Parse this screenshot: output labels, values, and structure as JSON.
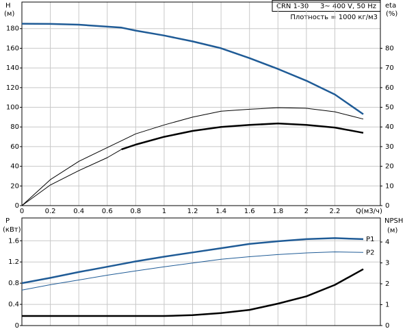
{
  "chart_data": [
    {
      "type": "line",
      "title": "CRN 1-30",
      "subtitle": "3~ 400 V, 50 Hz",
      "annotation": "Плотность = 1000 кг/м3",
      "xlabel": "Q(м3/ч)",
      "ylabel": "H",
      "yunit": "(м)",
      "y2label": "eta",
      "y2unit": "(%)",
      "x": [
        0,
        0.2,
        0.4,
        0.6,
        0.7,
        0.8,
        1.0,
        1.2,
        1.4,
        1.6,
        1.8,
        2.0,
        2.2,
        2.4
      ],
      "xlim": [
        0,
        2.52
      ],
      "xticks": [
        0,
        0.2,
        0.4,
        0.6,
        0.8,
        1,
        1.2,
        1.4,
        1.6,
        1.8,
        2,
        2.2
      ],
      "ylim": [
        0,
        207
      ],
      "yticks": [
        0,
        20,
        40,
        60,
        80,
        100,
        120,
        140,
        160,
        180
      ],
      "y2lim": [
        0,
        103.5
      ],
      "y2ticks": [
        0,
        10,
        20,
        30,
        40,
        50,
        60,
        70,
        80
      ],
      "grid": true,
      "series": [
        {
          "color": "#1f5b96",
          "line_width": 2.5,
          "values": [
            185,
            184.8,
            184,
            182,
            181,
            178,
            173,
            167,
            160,
            150,
            139,
            127,
            113,
            93
          ]
        },
        {
          "color": "#000000",
          "line_width": 1,
          "axis": "y2",
          "values": [
            0,
            13.2,
            22.5,
            29.5,
            33,
            36.5,
            41,
            45,
            48,
            49,
            49.8,
            49.5,
            47.7,
            44
          ]
        },
        {
          "color": "#000000",
          "line_width": 1,
          "axis": "y2",
          "values": [
            0,
            10.5,
            17.8,
            24.4,
            28.6,
            null,
            null,
            null,
            null,
            null,
            null,
            null,
            null,
            null
          ]
        },
        {
          "color": "#000000",
          "line_width": 2.5,
          "axis": "y2",
          "values": [
            null,
            null,
            null,
            null,
            28.6,
            31,
            35,
            38,
            40,
            41,
            41.8,
            41,
            39.7,
            37
          ]
        }
      ]
    },
    {
      "type": "line",
      "ylabel": "P",
      "yunit": "(кВт)",
      "y2label": "NPSH",
      "y2unit": "(м)",
      "x": [
        0,
        0.2,
        0.4,
        0.6,
        0.8,
        1.0,
        1.2,
        1.4,
        1.6,
        1.8,
        2.0,
        2.2,
        2.4
      ],
      "xlim": [
        0,
        2.52
      ],
      "ylim": [
        0,
        2.03
      ],
      "yticks": [
        0,
        0.4,
        0.8,
        1.2,
        1.6
      ],
      "y2lim": [
        0,
        5.15
      ],
      "y2ticks": [
        0,
        1,
        2,
        3,
        4
      ],
      "grid": true,
      "series": [
        {
          "name": "P1",
          "color": "#1f5b96",
          "line_width": 2.5,
          "values": [
            0.8,
            0.9,
            1.01,
            1.11,
            1.21,
            1.3,
            1.38,
            1.46,
            1.54,
            1.59,
            1.63,
            1.65,
            1.63
          ]
        },
        {
          "name": "P2",
          "color": "#1f5b96",
          "line_width": 1,
          "values": [
            0.67,
            0.77,
            0.86,
            0.95,
            1.03,
            1.11,
            1.18,
            1.25,
            1.3,
            1.34,
            1.37,
            1.39,
            1.38
          ]
        },
        {
          "color": "#000000",
          "line_width": 2.5,
          "axis": "y2",
          "values": [
            0.46,
            0.46,
            0.46,
            0.46,
            0.46,
            0.46,
            0.5,
            0.6,
            0.75,
            1.05,
            1.4,
            1.95,
            2.7
          ]
        }
      ]
    }
  ]
}
